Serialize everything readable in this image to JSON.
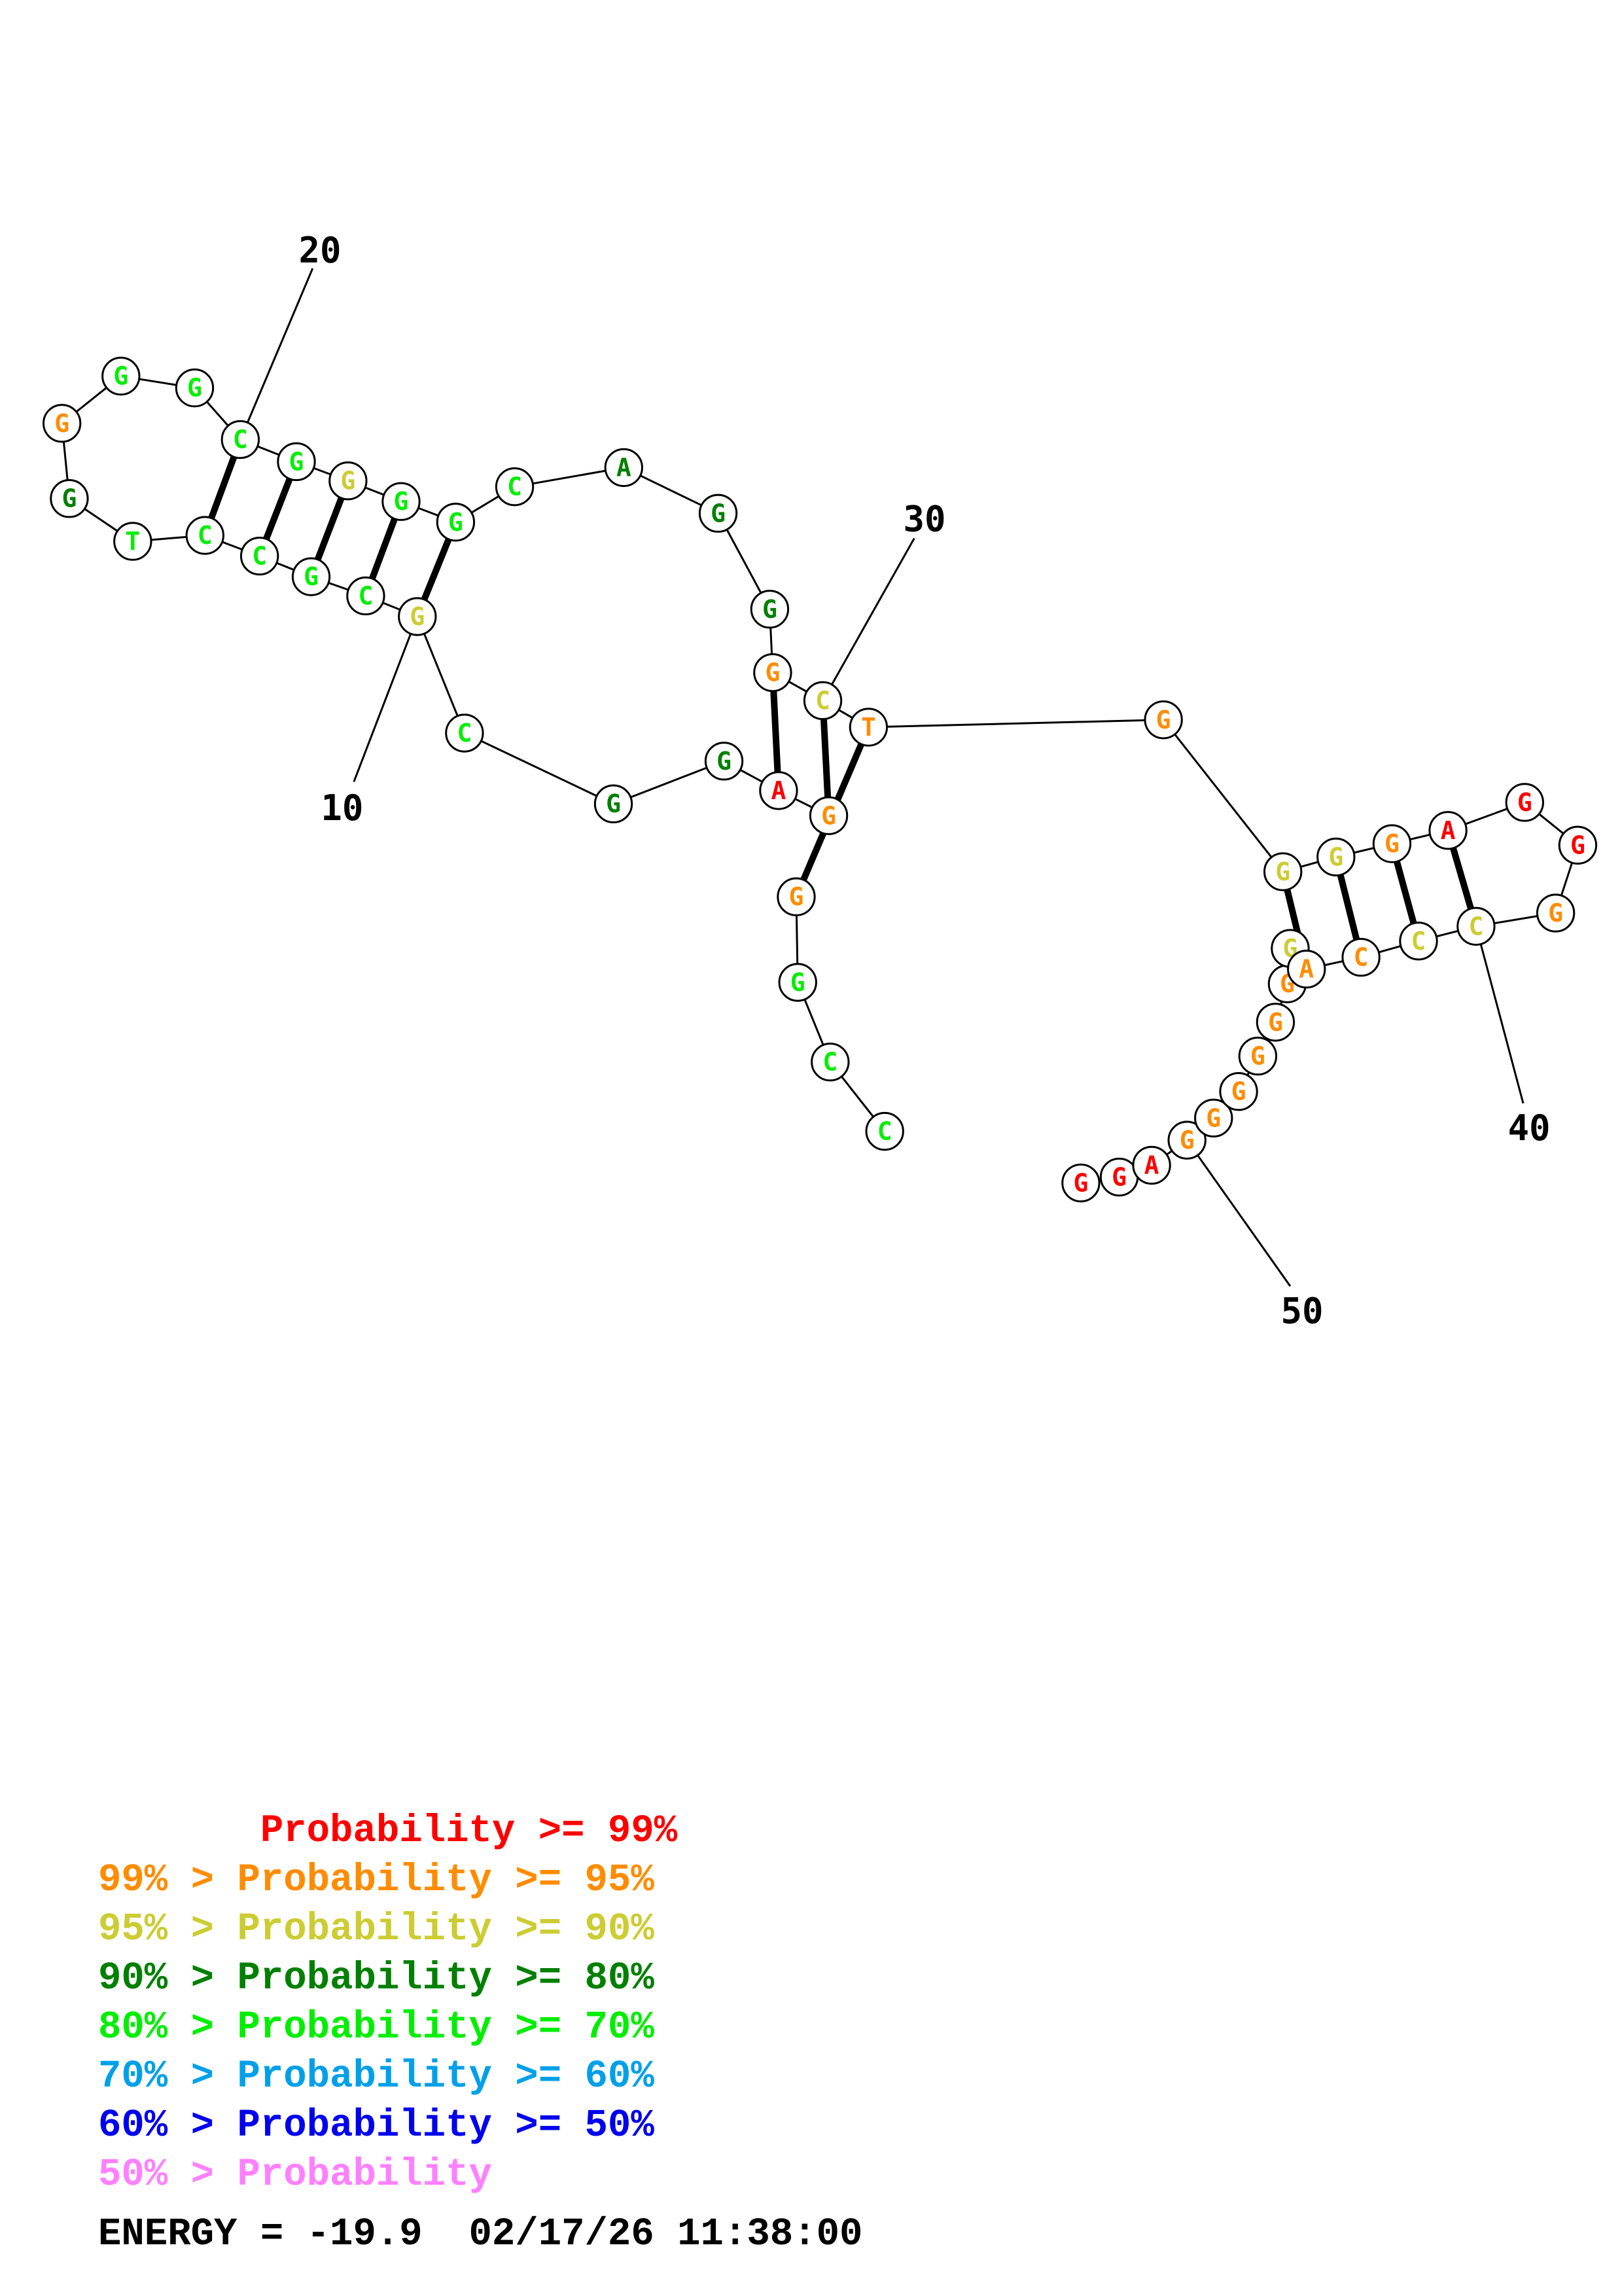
{
  "sequence": [
    {
      "base": "G",
      "color": "#ff0000"
    },
    {
      "base": "G",
      "color": "#ff0000"
    },
    {
      "base": "A",
      "color": "#ff0000"
    },
    {
      "base": "G",
      "color": "#ff8c00"
    },
    {
      "base": "G",
      "color": "#ff8c00"
    },
    {
      "base": "G",
      "color": "#ff8c00"
    },
    {
      "base": "G",
      "color": "#ff8c00"
    },
    {
      "base": "G",
      "color": "#ff8c00"
    },
    {
      "base": "G",
      "color": "#ff8c00"
    },
    {
      "base": "G",
      "color": "#cccc33"
    },
    {
      "base": "A",
      "color": "#ff8c00"
    },
    {
      "base": "C",
      "color": "#ff8c00"
    },
    {
      "base": "C",
      "color": "#cccc33"
    },
    {
      "base": "C",
      "color": "#cccc33"
    },
    {
      "base": "G",
      "color": "#ff8c00"
    },
    {
      "base": "G",
      "color": "#ff0000"
    },
    {
      "base": "G",
      "color": "#ff0000"
    },
    {
      "base": "A",
      "color": "#ff0000"
    },
    {
      "base": "G",
      "color": "#ff8c00"
    },
    {
      "base": "G",
      "color": "#cccc33"
    },
    {
      "base": "G",
      "color": "#cccc33"
    },
    {
      "base": "G",
      "color": "#ff8c00"
    },
    {
      "base": "T",
      "color": "#ff8c00"
    },
    {
      "base": "C",
      "color": "#cccc33"
    },
    {
      "base": "G",
      "color": "#ff8c00"
    },
    {
      "base": "G",
      "color": "#008000"
    },
    {
      "base": "G",
      "color": "#008000"
    },
    {
      "base": "A",
      "color": "#008000"
    },
    {
      "base": "C",
      "color": "#00ee00"
    },
    {
      "base": "G",
      "color": "#00ee00"
    },
    {
      "base": "G",
      "color": "#00ee00"
    },
    {
      "base": "G",
      "color": "#cccc33"
    },
    {
      "base": "G",
      "color": "#00ee00"
    },
    {
      "base": "C",
      "color": "#00ee00"
    },
    {
      "base": "G",
      "color": "#00ee00"
    },
    {
      "base": "G",
      "color": "#00ee00"
    },
    {
      "base": "G",
      "color": "#ff8c00"
    },
    {
      "base": "G",
      "color": "#008000"
    },
    {
      "base": "T",
      "color": "#00ee00"
    },
    {
      "base": "C",
      "color": "#00ee00"
    },
    {
      "base": "C",
      "color": "#00ee00"
    },
    {
      "base": "G",
      "color": "#00ee00"
    },
    {
      "base": "C",
      "color": "#00ee00"
    },
    {
      "base": "G",
      "color": "#cccc33"
    },
    {
      "base": "C",
      "color": "#00ee00"
    },
    {
      "base": "G",
      "color": "#008000"
    },
    {
      "base": "G",
      "color": "#008000"
    },
    {
      "base": "A",
      "color": "#ff0000"
    },
    {
      "base": "G",
      "color": "#ff8c00"
    },
    {
      "base": "G",
      "color": "#ff8c00"
    },
    {
      "base": "G",
      "color": "#00ee00"
    },
    {
      "base": "C",
      "color": "#00ee00"
    },
    {
      "base": "C",
      "color": "#00ee00"
    },
    {
      "base": "G",
      "color": "#cccc33"
    },
    {
      "base": "G",
      "color": "#ff0000"
    },
    {
      "base": "G",
      "color": "#ff8c00"
    },
    {
      "base": "T",
      "color": "#ff8c00"
    }
  ],
  "pairs": [
    [
      10,
      24
    ],
    [
      11,
      23
    ],
    [
      12,
      22
    ],
    [
      13,
      21
    ],
    [
      14,
      20
    ],
    [
      29,
      51
    ],
    [
      30,
      52
    ],
    [
      31,
      53
    ],
    [
      33,
      46
    ],
    [
      34,
      45
    ],
    [
      35,
      44
    ],
    [
      36,
      43
    ]
  ],
  "position_labels": [
    {
      "text": "10",
      "nuc": 10
    },
    {
      "text": "20",
      "nuc": 20
    },
    {
      "text": "30",
      "nuc": 31
    },
    {
      "text": "40",
      "nuc": 41
    },
    {
      "text": "50",
      "nuc": 51
    }
  ],
  "legend": [
    {
      "prefix": "       ",
      "label": "Probability >= 99%",
      "color": "#ff0000"
    },
    {
      "prefix": "99% > ",
      "label": "Probability >= 95%",
      "color": "#ff8c00"
    },
    {
      "prefix": "95% > ",
      "label": "Probability >= 90%",
      "color": "#cccc33"
    },
    {
      "prefix": "90% > ",
      "label": "Probability >= 80%",
      "color": "#008000"
    },
    {
      "prefix": "80% > ",
      "label": "Probability >= 70%",
      "color": "#00ee00"
    },
    {
      "prefix": "70% > ",
      "label": "Probability >= 60%",
      "color": "#00a0e9"
    },
    {
      "prefix": "60% > ",
      "label": "Probability >= 50%",
      "color": "#0000ee"
    },
    {
      "prefix": "50% > ",
      "label": "Probability",
      "color": "#ff80ff"
    }
  ],
  "footer": {
    "energy_label": "ENERGY = -19.9",
    "timestamp": "02/17/26 11:38:00"
  }
}
